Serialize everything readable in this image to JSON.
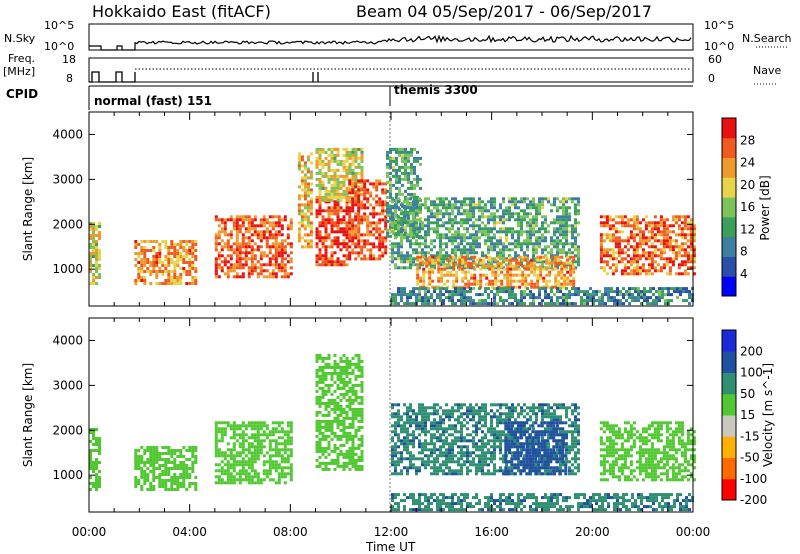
{
  "header": {
    "radar": "Hokkaido East (fitACF)",
    "beam": "Beam 04",
    "dates": "05/Sep/2017 - 06/Sep/2017"
  },
  "strips": {
    "nsky": {
      "label": "N.Sky",
      "ticks": [
        "10^5",
        "10^0"
      ]
    },
    "nsearch": {
      "label": "N.Search",
      "ticks": [
        "10^5",
        "10^0"
      ]
    },
    "freq": {
      "label_line1": "Freq.",
      "label_line2": "[MHz]",
      "ticks": [
        "18",
        "8"
      ]
    },
    "nave": {
      "label": "Nave",
      "ticks": [
        "60",
        "0"
      ]
    },
    "cpid": {
      "label": "CPID",
      "modes": [
        {
          "text": "normal (fast) 151",
          "start_hour": 0
        },
        {
          "text": "themis 3300",
          "start_hour": 12
        }
      ]
    }
  },
  "chart_data": [
    {
      "type": "heatmap",
      "name": "power",
      "ylabel": "Slant Range [km]",
      "xlabel": "Time UT",
      "xlim": [
        0,
        24
      ],
      "ylim": [
        180,
        4500
      ],
      "xticks": [
        "00:00",
        "04:00",
        "08:00",
        "12:00",
        "16:00",
        "20:00",
        "00:00"
      ],
      "yticks": [
        1000,
        2000,
        3000,
        4000
      ],
      "colorbar": {
        "label": "Power [dB]",
        "ticks": [
          "28",
          "24",
          "20",
          "16",
          "12",
          "8",
          "4"
        ],
        "range": [
          0,
          30
        ]
      },
      "regions": [
        {
          "t": [
            0.0,
            0.4
          ],
          "r": [
            700,
            2050
          ],
          "v": 18
        },
        {
          "t": [
            1.8,
            4.3
          ],
          "r": [
            650,
            1650
          ],
          "v": 22
        },
        {
          "t": [
            5.0,
            8.0
          ],
          "r": [
            800,
            2200
          ],
          "v": 25
        },
        {
          "t": [
            8.3,
            8.8
          ],
          "r": [
            1500,
            3600
          ],
          "v": 20
        },
        {
          "t": [
            9.0,
            10.3
          ],
          "r": [
            1100,
            2600
          ],
          "v": 27
        },
        {
          "t": [
            9.0,
            10.8
          ],
          "r": [
            2500,
            3700
          ],
          "v": 18
        },
        {
          "t": [
            10.3,
            11.8
          ],
          "r": [
            1200,
            3000
          ],
          "v": 26
        },
        {
          "t": [
            11.8,
            13.2
          ],
          "r": [
            1700,
            3700
          ],
          "v": 12
        },
        {
          "t": [
            12.0,
            19.5
          ],
          "r": [
            1000,
            2600
          ],
          "v": 12
        },
        {
          "t": [
            13.0,
            19.3
          ],
          "r": [
            600,
            1300
          ],
          "v": 22
        },
        {
          "t": [
            12.0,
            24.0
          ],
          "r": [
            200,
            600
          ],
          "v": 9
        },
        {
          "t": [
            20.3,
            24.0
          ],
          "r": [
            900,
            2200
          ],
          "v": 24
        }
      ]
    },
    {
      "type": "heatmap",
      "name": "velocity",
      "ylabel": "Slant Range [km]",
      "xlabel": "Time UT",
      "xlim": [
        0,
        24
      ],
      "ylim": [
        180,
        4500
      ],
      "xticks": [
        "00:00",
        "04:00",
        "08:00",
        "12:00",
        "16:00",
        "20:00",
        "00:00"
      ],
      "yticks": [
        1000,
        2000,
        3000,
        4000
      ],
      "colorbar": {
        "label": "Velocity [m s^-1]",
        "ticks": [
          "200",
          "100",
          "50",
          "15",
          "-15",
          "-50",
          "-100",
          "-200"
        ],
        "range": [
          -250,
          250
        ]
      },
      "regions": [
        {
          "t": [
            0.0,
            0.4
          ],
          "r": [
            700,
            2050
          ],
          "v": 0
        },
        {
          "t": [
            1.8,
            4.3
          ],
          "r": [
            650,
            1650
          ],
          "v": 0
        },
        {
          "t": [
            5.0,
            8.0
          ],
          "r": [
            800,
            2200
          ],
          "v": 0
        },
        {
          "t": [
            9.0,
            10.8
          ],
          "r": [
            1100,
            3700
          ],
          "v": 0
        },
        {
          "t": [
            12.0,
            19.5
          ],
          "r": [
            1000,
            2600
          ],
          "v": 40
        },
        {
          "t": [
            16.5,
            19.0
          ],
          "r": [
            1000,
            2200
          ],
          "v": 80
        },
        {
          "t": [
            12.0,
            24.0
          ],
          "r": [
            200,
            600
          ],
          "v": 40
        },
        {
          "t": [
            20.3,
            24.0
          ],
          "r": [
            900,
            2200
          ],
          "v": 0
        }
      ]
    }
  ]
}
